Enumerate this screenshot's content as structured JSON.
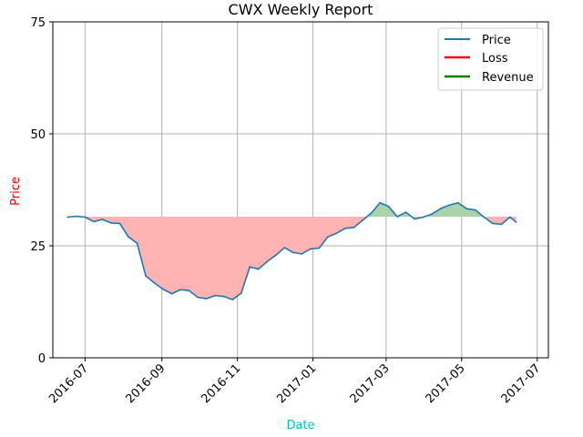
{
  "chart_data": {
    "type": "line",
    "title": "CWX Weekly Report",
    "xlabel": "Date",
    "ylabel": "Price",
    "colors": {
      "price": "#1f77b4",
      "loss": "#ff0000",
      "revenue": "#008000",
      "loss_fill": "#ffb3b3",
      "revenue_fill": "#aad3aa",
      "xlabel": "#00bfbf",
      "ylabel": "#ff0000",
      "grid": "#b0b0b0"
    },
    "xlim": [
      "2016-06-05",
      "2017-07-10"
    ],
    "ylim": [
      0,
      75
    ],
    "baseline": 31.5,
    "grid": true,
    "legend_position": "top-right",
    "legend": [
      "Price",
      "Loss",
      "Revenue"
    ],
    "x_ticks": [
      {
        "date": "2016-07-01",
        "label": "2016-07"
      },
      {
        "date": "2016-09-01",
        "label": "2016-09"
      },
      {
        "date": "2016-11-01",
        "label": "2016-11"
      },
      {
        "date": "2017-01-01",
        "label": "2017-01"
      },
      {
        "date": "2017-03-01",
        "label": "2017-03"
      },
      {
        "date": "2017-05-01",
        "label": "2017-05"
      },
      {
        "date": "2017-07-01",
        "label": "2017-07"
      }
    ],
    "y_ticks": [
      0,
      25,
      50,
      75
    ],
    "series": [
      {
        "name": "Price",
        "x": [
          "2016-06-17",
          "2016-06-24",
          "2016-07-01",
          "2016-07-08",
          "2016-07-15",
          "2016-07-22",
          "2016-07-29",
          "2016-08-05",
          "2016-08-12",
          "2016-08-19",
          "2016-08-26",
          "2016-09-02",
          "2016-09-09",
          "2016-09-16",
          "2016-09-23",
          "2016-09-30",
          "2016-10-07",
          "2016-10-14",
          "2016-10-21",
          "2016-10-28",
          "2016-11-04",
          "2016-11-11",
          "2016-11-18",
          "2016-11-25",
          "2016-12-02",
          "2016-12-09",
          "2016-12-16",
          "2016-12-23",
          "2016-12-30",
          "2017-01-06",
          "2017-01-13",
          "2017-01-20",
          "2017-01-27",
          "2017-02-03",
          "2017-02-10",
          "2017-02-17",
          "2017-02-24",
          "2017-03-03",
          "2017-03-10",
          "2017-03-17",
          "2017-03-24",
          "2017-03-31",
          "2017-04-07",
          "2017-04-14",
          "2017-04-21",
          "2017-04-28",
          "2017-05-05",
          "2017-05-12",
          "2017-05-19",
          "2017-05-26",
          "2017-06-02",
          "2017-06-09",
          "2017-06-14"
        ],
        "values": [
          31.4,
          31.6,
          31.4,
          30.4,
          30.9,
          30.1,
          30.0,
          27.0,
          25.6,
          18.3,
          16.7,
          15.3,
          14.3,
          15.2,
          15.0,
          13.5,
          13.2,
          13.9,
          13.7,
          13.0,
          14.4,
          20.3,
          19.8,
          21.5,
          22.9,
          24.6,
          23.5,
          23.2,
          24.3,
          24.5,
          27.0,
          27.8,
          28.9,
          29.1,
          30.7,
          32.3,
          34.6,
          33.8,
          31.5,
          32.5,
          31.0,
          31.4,
          32.1,
          33.3,
          34.1,
          34.6,
          33.3,
          33.0,
          31.4,
          30.0,
          29.8,
          31.4,
          30.3
        ]
      }
    ]
  }
}
